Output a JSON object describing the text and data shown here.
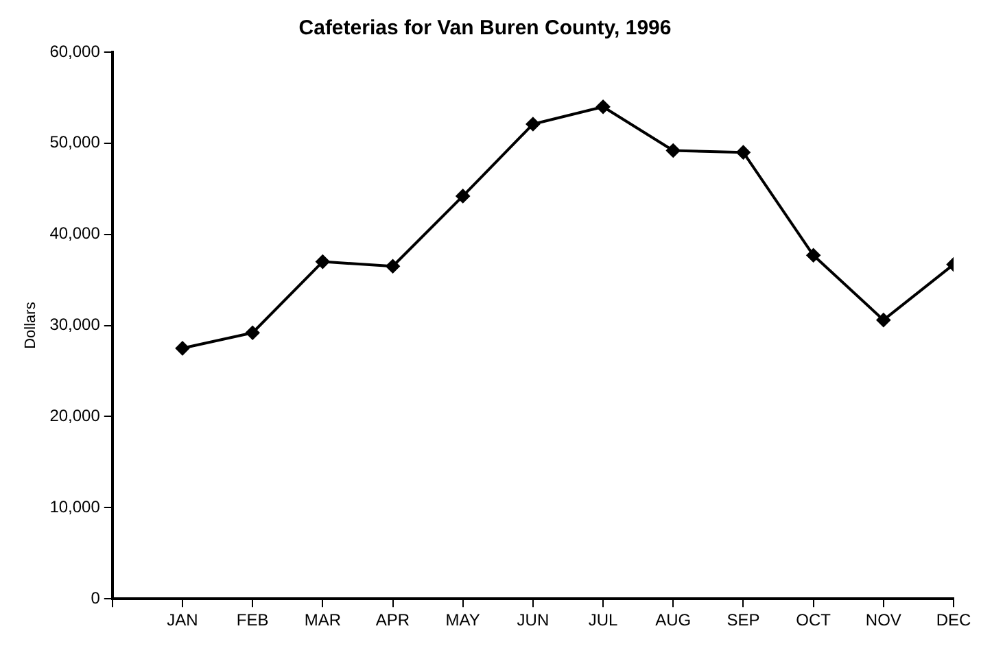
{
  "chart_data": {
    "type": "line",
    "title": "Cafeterias for Van Buren County, 1996",
    "ylabel": "Dollars",
    "categories": [
      "JAN",
      "FEB",
      "MAR",
      "APR",
      "MAY",
      "JUN",
      "JUL",
      "AUG",
      "SEP",
      "OCT",
      "NOV",
      "DEC"
    ],
    "series": [
      {
        "color": "#000000",
        "values": [
          27500,
          29200,
          37000,
          36500,
          44200,
          52100,
          54000,
          49200,
          49000,
          37700,
          30600,
          36700
        ]
      }
    ],
    "ylim": [
      0,
      60000
    ],
    "yticks": [
      {
        "value": 0,
        "label": "0"
      },
      {
        "value": 10000,
        "label": "10,000"
      },
      {
        "value": 20000,
        "label": "20,000"
      },
      {
        "value": 30000,
        "label": "30,000"
      },
      {
        "value": 40000,
        "label": "40,000"
      },
      {
        "value": 50000,
        "label": "50,000"
      },
      {
        "value": 60000,
        "label": "60,000"
      }
    ],
    "grid": false,
    "legend": false,
    "marker": "diamond",
    "line_style": "solid"
  }
}
